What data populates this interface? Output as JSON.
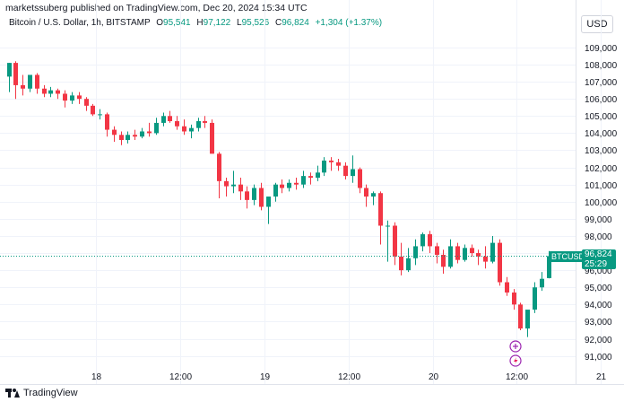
{
  "header": {
    "caption": "marketssuberg published on TradingView.com, Dec 20, 2024 15:34 UTC"
  },
  "legend": {
    "symbol": "Bitcoin / U.S. Dollar, 1h, BITSTAMP",
    "o_label": "O",
    "o_value": "95,541",
    "h_label": "H",
    "h_value": "97,122",
    "l_label": "L",
    "l_value": "95,526",
    "c_label": "C",
    "c_value": "96,824",
    "change": "+1,304 (+1.37%)"
  },
  "currency": "USD",
  "footer": {
    "brand": "TradingView"
  },
  "last_price": {
    "symbol": "BTCUSD",
    "price": "96,824",
    "countdown": "25:29",
    "value": 96824
  },
  "colors": {
    "up": "#089981",
    "down": "#f23645",
    "grid": "#f0f3fa",
    "accent": "#9c27b0"
  },
  "icons": [
    "plus-circle-icon",
    "lightning-circle-icon"
  ],
  "chart_data": {
    "type": "candlestick",
    "y_ticks": [
      "91,000",
      "92,000",
      "93,000",
      "94,000",
      "95,000",
      "96,000",
      "97,000",
      "98,000",
      "99,000",
      "100,000",
      "101,000",
      "102,000",
      "103,000",
      "104,000",
      "105,000",
      "106,000",
      "107,000",
      "108,000",
      "109,000"
    ],
    "y_tick_values": [
      91000,
      92000,
      93000,
      94000,
      95000,
      96000,
      97000,
      98000,
      99000,
      100000,
      101000,
      102000,
      103000,
      104000,
      105000,
      106000,
      107000,
      108000,
      109000
    ],
    "ylim": [
      90300,
      110200
    ],
    "x_ticks": [
      "18",
      "12:00",
      "19",
      "12:00",
      "20",
      "12:00",
      "21"
    ],
    "x_tick_index": [
      12.5,
      24.5,
      36.5,
      48.5,
      60.5,
      72.5,
      84.5
    ],
    "candles": [
      {
        "o": 107300,
        "h": 108100,
        "l": 106400,
        "c": 108100
      },
      {
        "o": 108100,
        "h": 108200,
        "l": 106000,
        "c": 106800
      },
      {
        "o": 106800,
        "h": 107400,
        "l": 106200,
        "c": 106600
      },
      {
        "o": 106600,
        "h": 107400,
        "l": 106400,
        "c": 107400
      },
      {
        "o": 107400,
        "h": 107500,
        "l": 106300,
        "c": 106600
      },
      {
        "o": 106600,
        "h": 106800,
        "l": 106100,
        "c": 106300
      },
      {
        "o": 106300,
        "h": 106700,
        "l": 106100,
        "c": 106500
      },
      {
        "o": 106500,
        "h": 106600,
        "l": 106000,
        "c": 106300
      },
      {
        "o": 106300,
        "h": 106500,
        "l": 105500,
        "c": 105900
      },
      {
        "o": 105900,
        "h": 106400,
        "l": 105700,
        "c": 106200
      },
      {
        "o": 106200,
        "h": 106400,
        "l": 105700,
        "c": 106000
      },
      {
        "o": 106000,
        "h": 106100,
        "l": 105300,
        "c": 105600
      },
      {
        "o": 105600,
        "h": 105700,
        "l": 105000,
        "c": 105100
      },
      {
        "o": 105100,
        "h": 105400,
        "l": 104800,
        "c": 105100
      },
      {
        "o": 105100,
        "h": 105200,
        "l": 103800,
        "c": 104200
      },
      {
        "o": 104200,
        "h": 104400,
        "l": 103500,
        "c": 103900
      },
      {
        "o": 103900,
        "h": 104100,
        "l": 103300,
        "c": 103600
      },
      {
        "o": 103600,
        "h": 104100,
        "l": 103400,
        "c": 103900
      },
      {
        "o": 103900,
        "h": 104200,
        "l": 103600,
        "c": 103800
      },
      {
        "o": 103800,
        "h": 104300,
        "l": 103700,
        "c": 104100
      },
      {
        "o": 104100,
        "h": 104600,
        "l": 103800,
        "c": 104000
      },
      {
        "o": 104000,
        "h": 104900,
        "l": 103900,
        "c": 104600
      },
      {
        "o": 104600,
        "h": 105200,
        "l": 104400,
        "c": 105000
      },
      {
        "o": 105000,
        "h": 105300,
        "l": 104600,
        "c": 104700
      },
      {
        "o": 104700,
        "h": 105000,
        "l": 104200,
        "c": 104400
      },
      {
        "o": 104400,
        "h": 104800,
        "l": 103900,
        "c": 104100
      },
      {
        "o": 104100,
        "h": 104500,
        "l": 103700,
        "c": 104300
      },
      {
        "o": 104300,
        "h": 104900,
        "l": 104100,
        "c": 104700
      },
      {
        "o": 104700,
        "h": 105000,
        "l": 104300,
        "c": 104600
      },
      {
        "o": 104600,
        "h": 104800,
        "l": 102800,
        "c": 102800
      },
      {
        "o": 102800,
        "h": 102900,
        "l": 100200,
        "c": 101200
      },
      {
        "o": 101200,
        "h": 101400,
        "l": 100300,
        "c": 100900
      },
      {
        "o": 100900,
        "h": 101800,
        "l": 100500,
        "c": 101000
      },
      {
        "o": 101000,
        "h": 101400,
        "l": 100100,
        "c": 100600
      },
      {
        "o": 100600,
        "h": 100900,
        "l": 99600,
        "c": 100100
      },
      {
        "o": 100100,
        "h": 101000,
        "l": 99800,
        "c": 100800
      },
      {
        "o": 100800,
        "h": 101100,
        "l": 99500,
        "c": 99700
      },
      {
        "o": 99700,
        "h": 100200,
        "l": 98700,
        "c": 100300
      },
      {
        "o": 100300,
        "h": 101100,
        "l": 100000,
        "c": 101000
      },
      {
        "o": 101000,
        "h": 101300,
        "l": 100500,
        "c": 100800
      },
      {
        "o": 100800,
        "h": 101300,
        "l": 100600,
        "c": 101100
      },
      {
        "o": 101100,
        "h": 101400,
        "l": 100700,
        "c": 101000
      },
      {
        "o": 101000,
        "h": 101800,
        "l": 100800,
        "c": 101500
      },
      {
        "o": 101500,
        "h": 101700,
        "l": 101000,
        "c": 101400
      },
      {
        "o": 101400,
        "h": 102100,
        "l": 101200,
        "c": 101700
      },
      {
        "o": 101700,
        "h": 102600,
        "l": 101500,
        "c": 102400
      },
      {
        "o": 102400,
        "h": 102600,
        "l": 101800,
        "c": 102300
      },
      {
        "o": 102300,
        "h": 102500,
        "l": 101800,
        "c": 102100
      },
      {
        "o": 102100,
        "h": 102300,
        "l": 101300,
        "c": 101500
      },
      {
        "o": 101500,
        "h": 102700,
        "l": 101100,
        "c": 101900
      },
      {
        "o": 101900,
        "h": 102000,
        "l": 100500,
        "c": 100800
      },
      {
        "o": 100800,
        "h": 101000,
        "l": 99700,
        "c": 100300
      },
      {
        "o": 100300,
        "h": 100600,
        "l": 99800,
        "c": 100500
      },
      {
        "o": 100500,
        "h": 100600,
        "l": 97500,
        "c": 98600
      },
      {
        "o": 98600,
        "h": 98900,
        "l": 96500,
        "c": 98600
      },
      {
        "o": 98600,
        "h": 98800,
        "l": 96300,
        "c": 96800
      },
      {
        "o": 96800,
        "h": 97600,
        "l": 95700,
        "c": 96000
      },
      {
        "o": 96000,
        "h": 97300,
        "l": 95900,
        "c": 96700
      },
      {
        "o": 96700,
        "h": 97800,
        "l": 96300,
        "c": 97400
      },
      {
        "o": 97400,
        "h": 98200,
        "l": 97100,
        "c": 98100
      },
      {
        "o": 98100,
        "h": 98300,
        "l": 97000,
        "c": 97400
      },
      {
        "o": 97400,
        "h": 97600,
        "l": 96400,
        "c": 96900
      },
      {
        "o": 96900,
        "h": 97200,
        "l": 95800,
        "c": 96200
      },
      {
        "o": 96200,
        "h": 97800,
        "l": 96100,
        "c": 97400
      },
      {
        "o": 97400,
        "h": 97600,
        "l": 96400,
        "c": 96600
      },
      {
        "o": 96600,
        "h": 97500,
        "l": 96500,
        "c": 97300
      },
      {
        "o": 97300,
        "h": 97500,
        "l": 96800,
        "c": 97000
      },
      {
        "o": 97000,
        "h": 97200,
        "l": 96300,
        "c": 96800
      },
      {
        "o": 96800,
        "h": 97400,
        "l": 96100,
        "c": 96500
      },
      {
        "o": 96500,
        "h": 98000,
        "l": 96400,
        "c": 97600
      },
      {
        "o": 97600,
        "h": 97800,
        "l": 95100,
        "c": 95300
      },
      {
        "o": 95300,
        "h": 95600,
        "l": 94500,
        "c": 94700
      },
      {
        "o": 94700,
        "h": 94900,
        "l": 93700,
        "c": 94000
      },
      {
        "o": 94000,
        "h": 94100,
        "l": 92500,
        "c": 92600
      },
      {
        "o": 92600,
        "h": 93600,
        "l": 92100,
        "c": 93700
      },
      {
        "o": 93700,
        "h": 95300,
        "l": 93500,
        "c": 95000
      },
      {
        "o": 95000,
        "h": 95900,
        "l": 94800,
        "c": 95500
      },
      {
        "o": 95541,
        "h": 97122,
        "l": 95526,
        "c": 96824
      }
    ]
  }
}
